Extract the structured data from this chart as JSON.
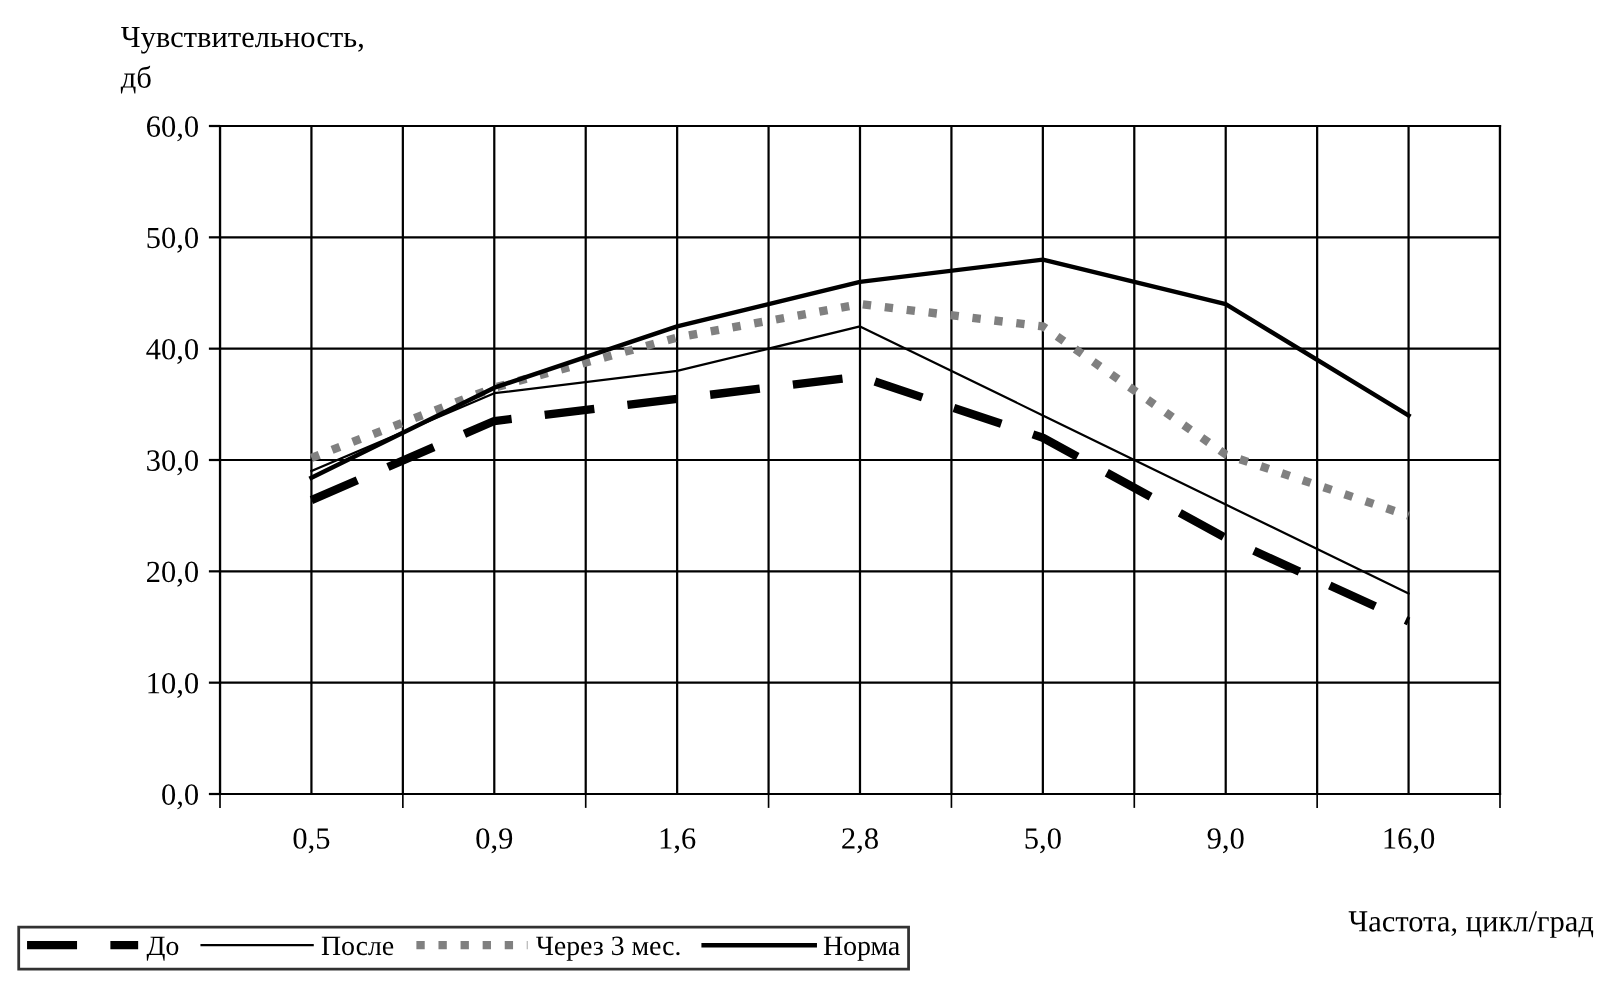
{
  "chart_data": {
    "type": "line",
    "ylabel": "Чувствительность,\nдб",
    "xlabel": "Частота, цикл/град",
    "categories": [
      "0,5",
      "0,9",
      "1,6",
      "2,8",
      "5,0",
      "9,0",
      "16,0"
    ],
    "series": [
      {
        "name": "До",
        "color": "#000000",
        "line_style": "dashed",
        "values": [
          26.4,
          33.5,
          35.5,
          37.5,
          32,
          23,
          15.5
        ]
      },
      {
        "name": "После",
        "color": "#000000",
        "line_style": "solid",
        "values": [
          29,
          36,
          38,
          42,
          34,
          26,
          18
        ]
      },
      {
        "name": "Через 3 мес.",
        "color": "#808080",
        "line_style": "dotted",
        "values": [
          30.2,
          36.5,
          41,
          44,
          42,
          30.5,
          25
        ]
      },
      {
        "name": "Норма",
        "color": "#000000",
        "line_style": "solid",
        "values": [
          28.4,
          36.5,
          42,
          46,
          48,
          44,
          34
        ]
      }
    ],
    "ylim": [
      0,
      60
    ],
    "yticks": [
      {
        "value": 0,
        "label": "0,0"
      },
      {
        "value": 10,
        "label": "10,0"
      },
      {
        "value": 20,
        "label": "20,0"
      },
      {
        "value": 30,
        "label": "30,0"
      },
      {
        "value": 40,
        "label": "40,0"
      },
      {
        "value": 50,
        "label": "50,0"
      },
      {
        "value": 60,
        "label": "60,0"
      }
    ],
    "grid": true,
    "legend": "bottom",
    "marker": "none"
  }
}
